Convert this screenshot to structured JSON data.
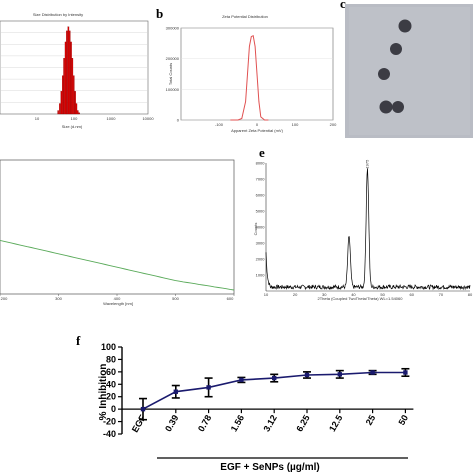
{
  "panels": {
    "a": {
      "letter": "",
      "title": "Size Distribution by Intensity",
      "xlabel": "Size (d.nm)"
    },
    "b": {
      "letter": "b",
      "title": "Zeta Potential Distribution",
      "xlabel": "Apparent Zeta Potential (mV)",
      "ylabel": "Total Counts"
    },
    "c": {
      "letter": "c"
    },
    "d": {
      "letter": "",
      "xlabel": "Wavelength [nm]"
    },
    "e": {
      "letter": "e",
      "xlabel": "2Theta (Coupled TwoTheta/Theta) WL=1.54060",
      "ylabel": "Counts"
    },
    "f": {
      "letter": "f",
      "ylabel": "% Inhibition",
      "xgroup_label": "EGF + SeNPs (µg/ml)"
    }
  },
  "chart_data": [
    {
      "panel": "a",
      "type": "bar",
      "title": "Size Distribution by Intensity",
      "xlabel": "Size (d.nm)",
      "ylabel": "",
      "xscale": "log",
      "xlim": [
        1,
        10000
      ],
      "ylim": [
        0,
        16
      ],
      "x_ticks": [
        "10",
        "100",
        "1000",
        "10000"
      ],
      "color": "#e00000",
      "categories": [
        36,
        40,
        44,
        48,
        52,
        57,
        62,
        68,
        74,
        80,
        87,
        95,
        103,
        112,
        122,
        133
      ],
      "values": [
        0.6,
        1.8,
        3.9,
        6.6,
        9.6,
        12.4,
        14.3,
        15.0,
        14.3,
        12.4,
        9.6,
        6.6,
        3.9,
        1.8,
        0.6,
        0.2
      ]
    },
    {
      "panel": "b",
      "type": "line",
      "title": "Zeta Potential Distribution",
      "xlabel": "Apparent Zeta Potential (mV)",
      "ylabel": "Total Counts",
      "xlim": [
        -200,
        200
      ],
      "ylim": [
        0,
        300000
      ],
      "x_ticks": [
        "-100",
        "0",
        "100",
        "200"
      ],
      "y_ticks": [
        "0",
        "100000",
        "200000",
        "300000"
      ],
      "color": "#e05050",
      "x": [
        -70,
        -50,
        -40,
        -30,
        -25,
        -20,
        -15,
        -10,
        -5,
        0,
        5,
        10,
        20,
        30
      ],
      "y": [
        0,
        0,
        5000,
        60000,
        150000,
        240000,
        272000,
        275000,
        240000,
        150000,
        60000,
        10000,
        0,
        0
      ]
    },
    {
      "panel": "d",
      "type": "line",
      "xlabel": "Wavelength [nm]",
      "ylabel": "",
      "xlim": [
        200,
        600
      ],
      "x_ticks": [
        "200",
        "300",
        "400",
        "500",
        "600"
      ],
      "color": "#5aaa5a",
      "x": [
        200,
        300,
        400,
        500,
        600
      ],
      "y": [
        0.4,
        0.3,
        0.2,
        0.1,
        0.03
      ],
      "ylim": [
        0,
        1
      ]
    },
    {
      "panel": "e",
      "type": "line",
      "xlabel": "2Theta (Coupled TwoTheta/Theta) WL=1.54060",
      "ylabel": "Counts",
      "xlim": [
        10,
        80
      ],
      "ylim": [
        0,
        8000
      ],
      "y_ticks": [
        "1000",
        "2000",
        "3000",
        "4000",
        "5000",
        "6000",
        "7000",
        "8000"
      ],
      "x_ticks": [
        "10",
        "20",
        "30",
        "40",
        "50",
        "60",
        "70",
        "80"
      ],
      "peak_labels": [
        "",
        "1975"
      ],
      "peaks": [
        {
          "x": 38.5,
          "y": 3200
        },
        {
          "x": 44.8,
          "y": 7400
        }
      ],
      "color": "#000000"
    },
    {
      "panel": "f",
      "type": "line",
      "xlabel": "EGF + SeNPs (µg/ml)",
      "ylabel": "% Inhibition",
      "ylim": [
        -40,
        100
      ],
      "y_ticks": [
        "-40",
        "-20",
        "0",
        "20",
        "40",
        "60",
        "80",
        "100"
      ],
      "categories": [
        "EGF",
        "0.39",
        "0.78",
        "1.56",
        "3.12",
        "6.25",
        "12.5",
        "25",
        "50"
      ],
      "series": [
        {
          "values": [
            0,
            28,
            35,
            47,
            50,
            55,
            56,
            59,
            59
          ],
          "errors": [
            17,
            10,
            15,
            4,
            6,
            5,
            6,
            3,
            6
          ],
          "color": "#1a1a6e"
        }
      ],
      "legend": "none",
      "grid": false
    }
  ]
}
